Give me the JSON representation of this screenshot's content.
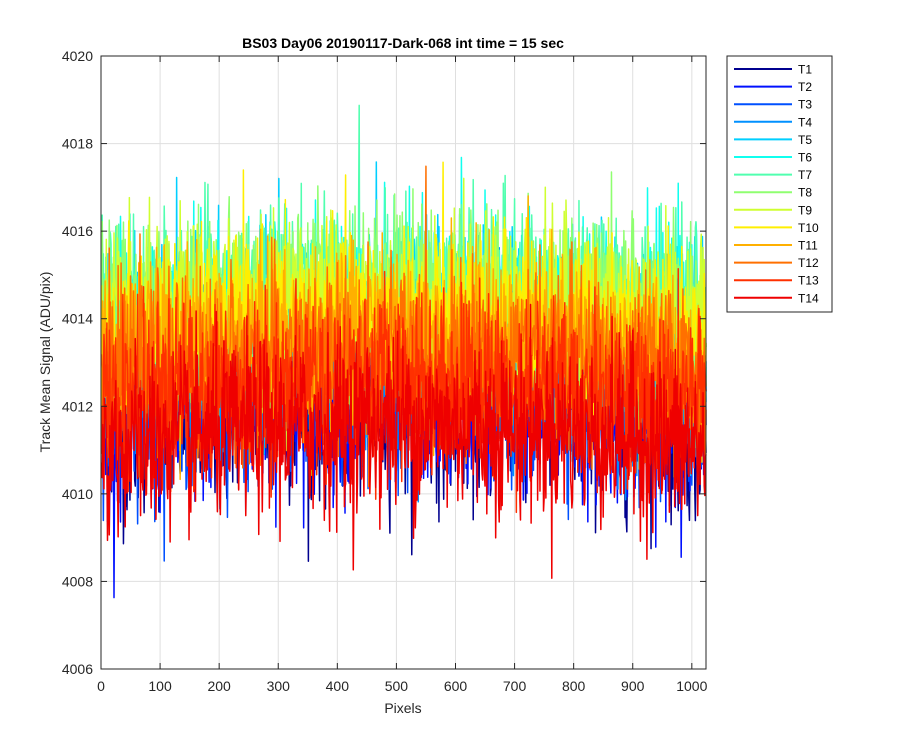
{
  "chart_data": {
    "type": "line",
    "title": "BS03 Day06 20190117-Dark-068 int time = 15 sec",
    "xlabel": "Pixels",
    "ylabel": "Track Mean Signal (ADU/pix)",
    "xlim": [
      0,
      1024
    ],
    "ylim": [
      4006,
      4020
    ],
    "xticks": [
      0,
      100,
      200,
      300,
      400,
      500,
      600,
      700,
      800,
      900,
      1000
    ],
    "yticks": [
      4006,
      4008,
      4010,
      4012,
      4014,
      4016,
      4018,
      4020
    ],
    "grid": true,
    "legend_position": "outside-top-right",
    "series": [
      {
        "name": "T1",
        "color": "#00008f",
        "mean": 4012.0,
        "spread": 1.0
      },
      {
        "name": "T2",
        "color": "#0010ff",
        "mean": 4012.2,
        "spread": 1.0
      },
      {
        "name": "T3",
        "color": "#0050ff",
        "mean": 4012.6,
        "spread": 1.0
      },
      {
        "name": "T4",
        "color": "#0090ff",
        "mean": 4013.2,
        "spread": 1.0
      },
      {
        "name": "T5",
        "color": "#00cfff",
        "mean": 4014.0,
        "spread": 1.0
      },
      {
        "name": "T6",
        "color": "#10ffef",
        "mean": 4014.4,
        "spread": 1.0
      },
      {
        "name": "T7",
        "color": "#50ffaf",
        "mean": 4014.6,
        "spread": 1.0
      },
      {
        "name": "T8",
        "color": "#8fff70",
        "mean": 4014.6,
        "spread": 1.0
      },
      {
        "name": "T9",
        "color": "#cfff30",
        "mean": 4014.4,
        "spread": 1.0
      },
      {
        "name": "T10",
        "color": "#ffef00",
        "mean": 4014.0,
        "spread": 1.0
      },
      {
        "name": "T11",
        "color": "#ffb000",
        "mean": 4013.6,
        "spread": 1.0
      },
      {
        "name": "T12",
        "color": "#ff7000",
        "mean": 4013.2,
        "spread": 1.0
      },
      {
        "name": "T13",
        "color": "#ff3000",
        "mean": 4012.6,
        "spread": 1.0
      },
      {
        "name": "T14",
        "color": "#ef0000",
        "mean": 4011.6,
        "spread": 1.0
      }
    ]
  }
}
